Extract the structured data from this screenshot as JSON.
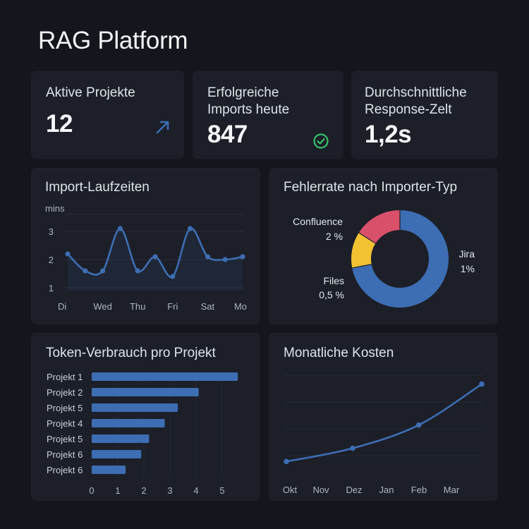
{
  "app": {
    "title": "RAG Platform"
  },
  "kpis": [
    {
      "label": "Aktive Projekte",
      "value": "12",
      "icon": "trend-up-arrow-icon"
    },
    {
      "label": "Erfolgreiche Imports heute",
      "label_lines": [
        "Erfolgreiche",
        "Imports heute"
      ],
      "value": "847",
      "icon": "check-circle-icon"
    },
    {
      "label": "Durchschnittliche Response-Zelt",
      "label_lines": [
        "Durchschnittliche",
        "Response-Zelt"
      ],
      "value": "1,2s"
    }
  ],
  "colors": {
    "accent": "#3d6db3",
    "success": "#35c26a",
    "pink": "#d9506a",
    "yellow": "#f2c232"
  },
  "chart_data": [
    {
      "id": "import-laufzeiten",
      "type": "line",
      "title": "Import-Laufzeiten",
      "ylabel": "mins",
      "x": [
        "Di",
        "",
        "Wed",
        "",
        "Thu",
        "",
        "Fri",
        "",
        "Sat",
        "",
        "Mo"
      ],
      "x_ticks": [
        "Di",
        "Wed",
        "Thu",
        "Fri",
        "Sat",
        "Mo"
      ],
      "values": [
        2.2,
        1.6,
        1.6,
        3.1,
        1.6,
        2.1,
        1.4,
        3.1,
        2.1,
        2.0,
        2.1
      ],
      "yticks": [
        1,
        2,
        3
      ],
      "ylim": [
        0.9,
        3.6
      ]
    },
    {
      "id": "fehlerrate",
      "type": "pie",
      "title": "Fehlerrate nach Importer-Typ",
      "slices": [
        {
          "name": "Jira",
          "value_label": "1%",
          "share": 0.72,
          "color": "#3d6db3"
        },
        {
          "name": "Files",
          "value_label": "0,5 %",
          "share": 0.12,
          "color": "#f2c232"
        },
        {
          "name": "Confluence",
          "value_label": "2 %",
          "share": 0.16,
          "color": "#d9506a"
        }
      ]
    },
    {
      "id": "token-verbrauch",
      "type": "bar",
      "title": "Token-Verbrauch pro Projekt",
      "categories": [
        "Projekt 1",
        "Projekt 2",
        "Projekt 5",
        "Projekt 4",
        "Projekt 5",
        "Projekt 6",
        "Projekt 6"
      ],
      "values": [
        5.6,
        4.1,
        3.3,
        2.8,
        2.2,
        1.9,
        1.3
      ],
      "xticks": [
        0,
        1,
        2,
        3,
        4,
        5
      ],
      "xlim": [
        0,
        6
      ]
    },
    {
      "id": "monatliche-kosten",
      "type": "line",
      "title": "Monatliche Kosten",
      "x": [
        "Okt",
        "Nov",
        "Dez",
        "Jan",
        "Feb",
        "Mar"
      ],
      "points": [
        {
          "x": 0,
          "y": 1.0
        },
        {
          "x": 2,
          "y": 2.2
        },
        {
          "x": 4,
          "y": 4.3
        },
        {
          "x": 5.9,
          "y": 8.0
        }
      ],
      "ylim": [
        0,
        8.8
      ]
    }
  ]
}
